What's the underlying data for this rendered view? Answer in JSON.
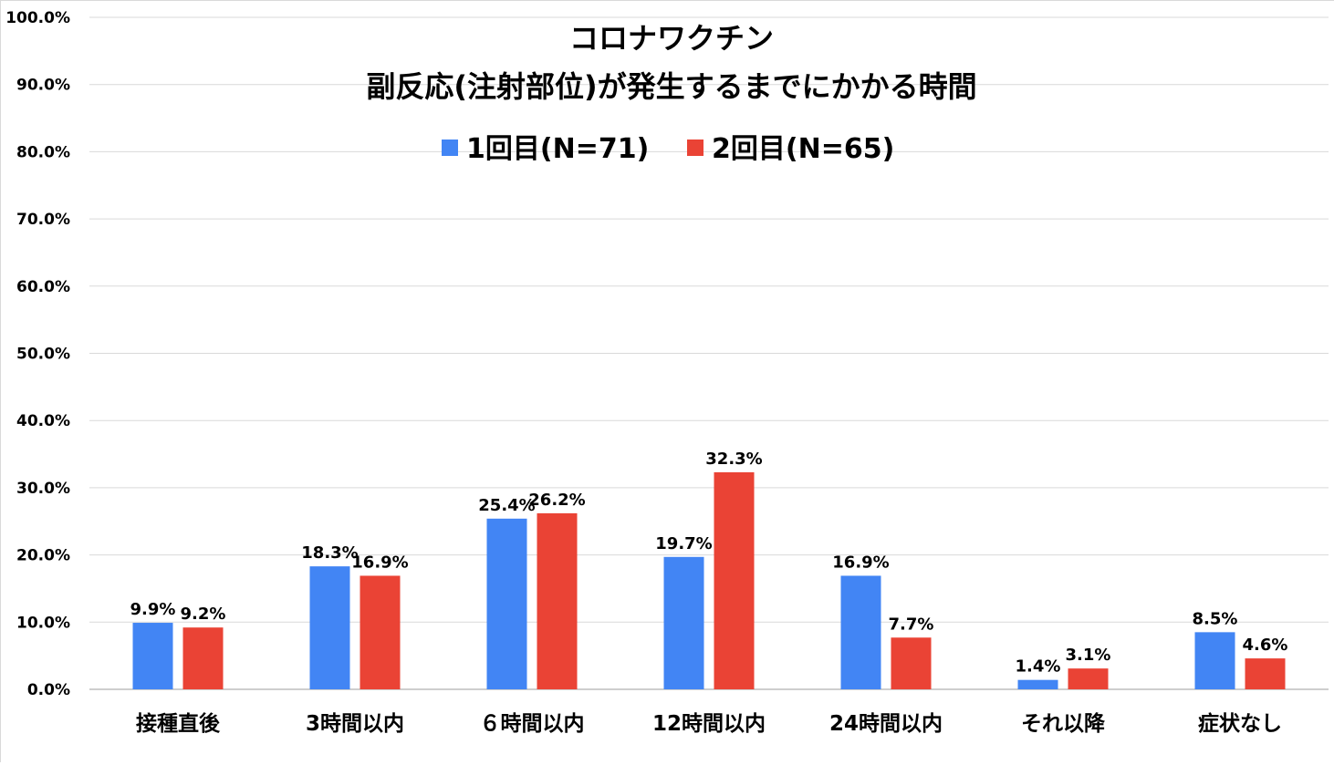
{
  "chart_data": {
    "type": "bar",
    "title_lines": [
      "コロナワクチン",
      "副反応(注射部位)が発生するまでにかかる時間"
    ],
    "categories": [
      "接種直後",
      "3時間以内",
      "６時間以内",
      "12時間以内",
      "24時間以内",
      "それ以降",
      "症状なし"
    ],
    "series": [
      {
        "name": "1回目(N=71)",
        "color": "#4285f4",
        "values": [
          9.9,
          18.3,
          25.4,
          19.7,
          16.9,
          1.4,
          8.5
        ],
        "labels": [
          "9.9%",
          "18.3%",
          "25.4%",
          "19.7%",
          "16.9%",
          "1.4%",
          "8.5%"
        ]
      },
      {
        "name": "2回目(N=65)",
        "color": "#ea4335",
        "values": [
          9.2,
          16.9,
          26.2,
          32.3,
          7.7,
          3.1,
          4.6
        ],
        "labels": [
          "9.2%",
          "16.9%",
          "26.2%",
          "32.3%",
          "7.7%",
          "3.1%",
          "4.6%"
        ]
      }
    ],
    "y_ticks": [
      "0.0%",
      "10.0%",
      "20.0%",
      "30.0%",
      "40.0%",
      "50.0%",
      "60.0%",
      "70.0%",
      "80.0%",
      "90.0%",
      "100.0%"
    ],
    "ylim": [
      0,
      100
    ],
    "grid": true,
    "legend_position": "top-center"
  }
}
